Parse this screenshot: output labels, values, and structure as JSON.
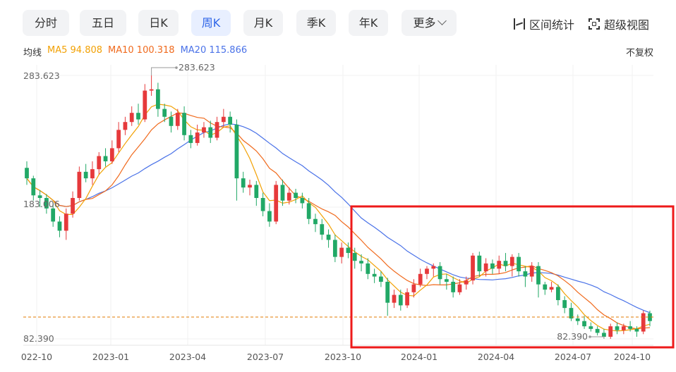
{
  "tabs": [
    {
      "label": "分时",
      "active": false
    },
    {
      "label": "五日",
      "active": false
    },
    {
      "label": "日K",
      "active": false
    },
    {
      "label": "周K",
      "active": true
    },
    {
      "label": "月K",
      "active": false
    },
    {
      "label": "季K",
      "active": false
    },
    {
      "label": "年K",
      "active": false
    },
    {
      "label": "更多",
      "active": false
    }
  ],
  "tools": {
    "range": "区间统计",
    "super": "超级视图"
  },
  "ma": {
    "label": "均线",
    "ma5": "MA5 94.808",
    "ma10": "MA10 100.318",
    "ma20": "MA20 115.866"
  },
  "fuquan": "不复权",
  "colors": {
    "up": "#e6393b",
    "down": "#21a866",
    "ma5": "#f2a104",
    "ma10": "#f06a1d",
    "ma20": "#4a72e8",
    "accent": "#2f66e8",
    "highlight": "#ee1a1a"
  },
  "chart_data": {
    "type": "candlestick",
    "period": "weekly",
    "yticks": [
      "283.623",
      "183.006",
      "82.390"
    ],
    "xticks": [
      "022-10",
      "2023-01",
      "2023-04",
      "2023-07",
      "2023-10",
      "2024-01",
      "2024-04",
      "2024-07",
      "2024-10"
    ],
    "ylim": [
      82.39,
      283.623
    ],
    "max_marker": "283.623",
    "min_marker": "82.390",
    "current_price": 95,
    "highlight_box": "2023-10 to 2024-10",
    "candles": [
      [
        213,
        205,
        218,
        200
      ],
      [
        205,
        192,
        207,
        188
      ],
      [
        192,
        190,
        196,
        183
      ],
      [
        190,
        182,
        193,
        178
      ],
      [
        182,
        172,
        186,
        168
      ],
      [
        172,
        165,
        176,
        160
      ],
      [
        165,
        178,
        182,
        158
      ],
      [
        178,
        190,
        195,
        175
      ],
      [
        190,
        210,
        214,
        188
      ],
      [
        210,
        205,
        216,
        202
      ],
      [
        205,
        212,
        218,
        200
      ],
      [
        212,
        222,
        225,
        208
      ],
      [
        222,
        218,
        228,
        214
      ],
      [
        218,
        228,
        234,
        216
      ],
      [
        228,
        242,
        248,
        225
      ],
      [
        242,
        248,
        252,
        238
      ],
      [
        248,
        255,
        260,
        245
      ],
      [
        255,
        250,
        262,
        246
      ],
      [
        250,
        272,
        277,
        248
      ],
      [
        272,
        273,
        283.6,
        268
      ],
      [
        273,
        258,
        278,
        252
      ],
      [
        258,
        252,
        262,
        248
      ],
      [
        252,
        245,
        256,
        240
      ],
      [
        245,
        255,
        258,
        242
      ],
      [
        255,
        238,
        260,
        234
      ],
      [
        238,
        232,
        242,
        228
      ],
      [
        232,
        240,
        246,
        230
      ],
      [
        240,
        244,
        248,
        236
      ],
      [
        244,
        236,
        249,
        232
      ],
      [
        236,
        248,
        252,
        234
      ],
      [
        248,
        252,
        258,
        244
      ],
      [
        252,
        246,
        256,
        240
      ],
      [
        246,
        205,
        250,
        188
      ],
      [
        205,
        198,
        210,
        194
      ],
      [
        198,
        200,
        204,
        192
      ],
      [
        200,
        190,
        203,
        184
      ],
      [
        190,
        180,
        194,
        176
      ],
      [
        180,
        172,
        186,
        168
      ],
      [
        172,
        200,
        203,
        170
      ],
      [
        200,
        188,
        204,
        184
      ],
      [
        188,
        194,
        198,
        185
      ],
      [
        194,
        190,
        197,
        186
      ],
      [
        190,
        186,
        194,
        182
      ],
      [
        186,
        174,
        190,
        170
      ],
      [
        174,
        170,
        178,
        164
      ],
      [
        170,
        162,
        174,
        158
      ],
      [
        162,
        158,
        166,
        152
      ],
      [
        158,
        145,
        162,
        141
      ],
      [
        145,
        152,
        156,
        140
      ],
      [
        152,
        148,
        156,
        144
      ],
      [
        148,
        142,
        152,
        136
      ],
      [
        142,
        140,
        147,
        134
      ],
      [
        140,
        132,
        144,
        128
      ],
      [
        132,
        130,
        136,
        125
      ],
      [
        130,
        126,
        134,
        122
      ],
      [
        126,
        110,
        129,
        100
      ],
      [
        110,
        116,
        120,
        106
      ],
      [
        116,
        108,
        120,
        104
      ],
      [
        108,
        118,
        121,
        106
      ],
      [
        118,
        124,
        128,
        114
      ],
      [
        124,
        132,
        136,
        122
      ],
      [
        132,
        136,
        138,
        128
      ],
      [
        136,
        138,
        140,
        130
      ],
      [
        138,
        128,
        141,
        124
      ],
      [
        128,
        126,
        132,
        120
      ],
      [
        126,
        118,
        130,
        114
      ],
      [
        118,
        124,
        128,
        116
      ],
      [
        124,
        127,
        130,
        120
      ],
      [
        127,
        146,
        148,
        124
      ],
      [
        146,
        134,
        149,
        130
      ],
      [
        134,
        140,
        144,
        130
      ],
      [
        140,
        136,
        143,
        132
      ],
      [
        136,
        142,
        146,
        132
      ],
      [
        142,
        138,
        148,
        134
      ],
      [
        138,
        145,
        147,
        130
      ],
      [
        145,
        134,
        148,
        130
      ],
      [
        134,
        130,
        138,
        122
      ],
      [
        130,
        138,
        141,
        126
      ],
      [
        138,
        124,
        141,
        114
      ],
      [
        124,
        120,
        126,
        116
      ],
      [
        120,
        122,
        126,
        118
      ],
      [
        122,
        112,
        124,
        108
      ],
      [
        112,
        106,
        115,
        102
      ],
      [
        106,
        98,
        110,
        96
      ],
      [
        98,
        96,
        101,
        93
      ],
      [
        96,
        92,
        100,
        90
      ],
      [
        92,
        90,
        95,
        88
      ],
      [
        90,
        87,
        92,
        85
      ],
      [
        87,
        84,
        90,
        82.4
      ],
      [
        84,
        92,
        94,
        82.4
      ],
      [
        92,
        89,
        95,
        86
      ],
      [
        89,
        92,
        94,
        86
      ],
      [
        92,
        90,
        96,
        88
      ],
      [
        90,
        88,
        92,
        84
      ],
      [
        88,
        102,
        104,
        86
      ],
      [
        102,
        96,
        104,
        92
      ]
    ]
  }
}
